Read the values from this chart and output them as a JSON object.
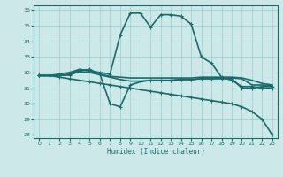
{
  "xlabel": "Humidex (Indice chaleur)",
  "background_color": "#cce8e8",
  "grid_color": "#99cccc",
  "line_color": "#1a6b6b",
  "xlim": [
    -0.5,
    23.5
  ],
  "ylim": [
    27.8,
    36.3
  ],
  "yticks": [
    28,
    29,
    30,
    31,
    32,
    33,
    34,
    35,
    36
  ],
  "xticks": [
    0,
    1,
    2,
    3,
    4,
    5,
    6,
    7,
    8,
    9,
    10,
    11,
    12,
    13,
    14,
    15,
    16,
    17,
    18,
    19,
    20,
    21,
    22,
    23
  ],
  "series": [
    {
      "x": [
        0,
        1,
        2,
        3,
        4,
        5,
        6,
        7,
        8,
        9,
        10,
        11,
        12,
        13,
        14,
        15,
        16,
        17,
        18,
        19,
        20,
        21,
        22,
        23
      ],
      "y": [
        31.8,
        31.8,
        31.8,
        31.9,
        32.2,
        32.1,
        32.0,
        31.9,
        34.4,
        35.8,
        35.8,
        34.9,
        35.7,
        35.7,
        35.6,
        35.1,
        33.0,
        32.6,
        31.7,
        31.5,
        31.1,
        31.1,
        31.0,
        31.0
      ],
      "marker": "+",
      "markersize": 3,
      "linewidth": 1.2
    },
    {
      "x": [
        0,
        1,
        2,
        3,
        4,
        5,
        6,
        7,
        8,
        9,
        10,
        11,
        12,
        13,
        14,
        15,
        16,
        17,
        18,
        19,
        20,
        21,
        22,
        23
      ],
      "y": [
        31.8,
        31.8,
        31.7,
        31.6,
        31.5,
        31.4,
        31.3,
        31.2,
        31.1,
        31.0,
        30.9,
        30.8,
        30.7,
        30.6,
        30.5,
        30.4,
        30.3,
        30.2,
        30.1,
        30.0,
        29.8,
        29.5,
        29.0,
        28.0
      ],
      "marker": "+",
      "markersize": 3,
      "linewidth": 1.2
    },
    {
      "x": [
        0,
        1,
        2,
        3,
        4,
        5,
        6,
        7,
        8,
        9,
        10,
        11,
        12,
        13,
        14,
        15,
        16,
        17,
        18,
        19,
        20,
        21,
        22,
        23
      ],
      "y": [
        31.8,
        31.8,
        31.9,
        32.0,
        32.2,
        32.1,
        31.9,
        31.75,
        31.7,
        31.65,
        31.65,
        31.65,
        31.65,
        31.65,
        31.65,
        31.65,
        31.7,
        31.7,
        31.7,
        31.7,
        31.65,
        31.5,
        31.3,
        31.2
      ],
      "marker": null,
      "markersize": 0,
      "linewidth": 1.2
    },
    {
      "x": [
        0,
        1,
        2,
        3,
        4,
        5,
        6,
        7,
        8,
        9,
        10,
        11,
        12,
        13,
        14,
        15,
        16,
        17,
        18,
        19,
        20,
        21,
        22,
        23
      ],
      "y": [
        31.8,
        31.8,
        31.8,
        31.85,
        32.05,
        32.0,
        31.85,
        31.7,
        31.55,
        31.45,
        31.45,
        31.5,
        31.5,
        31.5,
        31.55,
        31.55,
        31.6,
        31.6,
        31.65,
        31.65,
        31.6,
        31.2,
        31.2,
        31.15
      ],
      "marker": null,
      "markersize": 0,
      "linewidth": 1.2
    },
    {
      "x": [
        0,
        1,
        2,
        3,
        4,
        5,
        6,
        7,
        8,
        9,
        10,
        11,
        12,
        13,
        14,
        15,
        16,
        17,
        18,
        19,
        20,
        21,
        22,
        23
      ],
      "y": [
        31.8,
        31.8,
        31.8,
        31.85,
        32.1,
        32.2,
        31.9,
        30.0,
        29.8,
        31.2,
        31.4,
        31.5,
        31.5,
        31.5,
        31.55,
        31.55,
        31.6,
        31.6,
        31.6,
        31.6,
        31.0,
        31.0,
        31.1,
        31.1
      ],
      "marker": "+",
      "markersize": 3,
      "linewidth": 1.2
    }
  ]
}
